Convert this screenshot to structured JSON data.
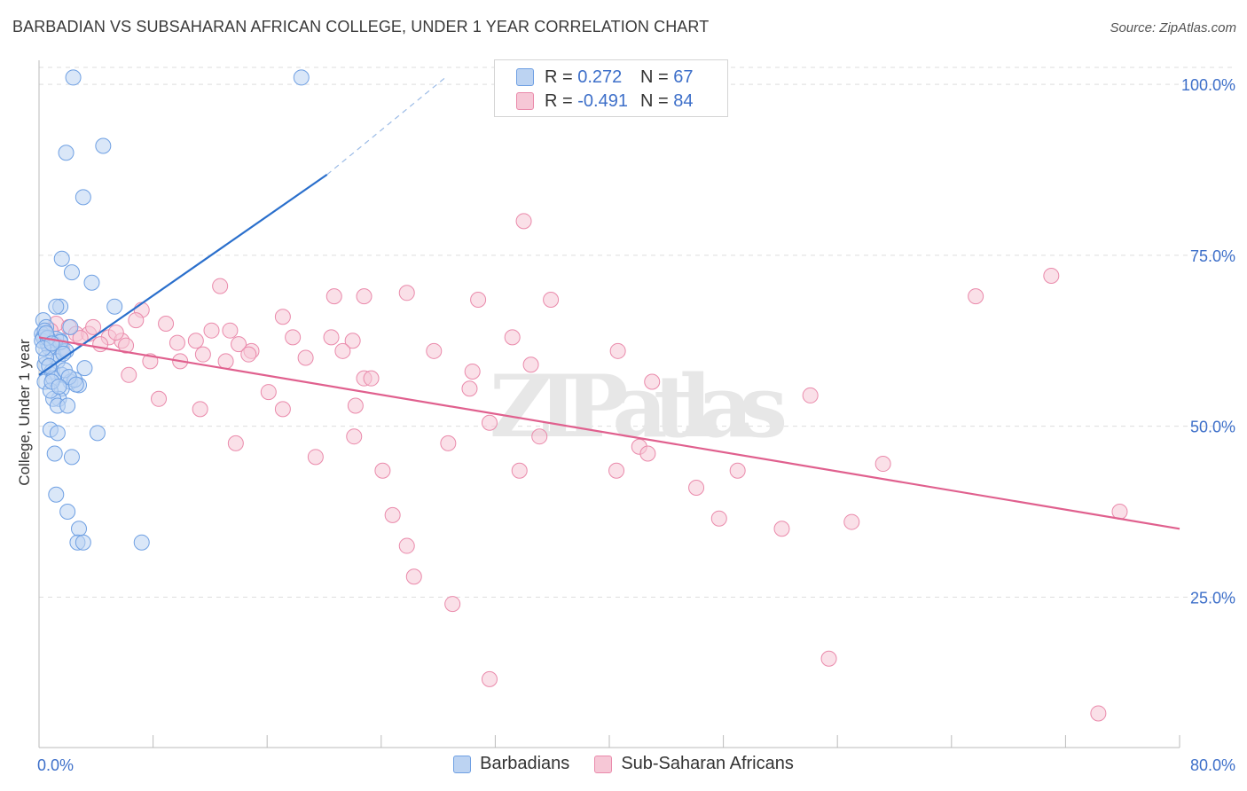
{
  "title": "BARBADIAN VS SUBSAHARAN AFRICAN COLLEGE, UNDER 1 YEAR CORRELATION CHART",
  "source": "Source: ZipAtlas.com",
  "watermark": "ZIPatlas",
  "legend_top": {
    "rows": [
      {
        "r_label": "R =",
        "r_value": "0.272",
        "n_label": "N =",
        "n_value": "67"
      },
      {
        "r_label": "R =",
        "r_value": "-0.491",
        "n_label": "N =",
        "n_value": "84"
      }
    ]
  },
  "colors": {
    "blue": "#6fa0e3",
    "blue_fill": "#bcd3f2",
    "blue_line": "#2a6fcc",
    "pink": "#ea8aab",
    "pink_fill": "#f6c7d6",
    "pink_line": "#e0608e",
    "axis_text": "#3d6fc9",
    "grid": "#dddddd"
  },
  "chart_data": {
    "type": "scatter",
    "title": "BARBADIAN VS SUBSAHARAN AFRICAN COLLEGE, UNDER 1 YEAR CORRELATION CHART",
    "xlabel": "",
    "ylabel": "College, Under 1 year",
    "xlim": [
      0,
      80
    ],
    "ylim": [
      3,
      103
    ],
    "x_tick_labels": [
      "0.0%",
      "80.0%"
    ],
    "y_ticks": [
      25,
      50,
      75,
      100
    ],
    "y_tick_labels": [
      "25.0%",
      "50.0%",
      "75.0%",
      "100.0%"
    ],
    "legend": [
      "Barbadians",
      "Sub-Saharan Africans"
    ],
    "series": [
      {
        "name": "Barbadians",
        "r": 0.272,
        "n": 67,
        "trend": {
          "x0": 0,
          "y0": 57.5,
          "x1": 20.2,
          "y1": 86.8,
          "dash_x1": 28.5,
          "dash_y1": 101
        },
        "points": [
          [
            2.4,
            101
          ],
          [
            18.4,
            101
          ],
          [
            1.9,
            90
          ],
          [
            4.5,
            91
          ],
          [
            3.1,
            83.5
          ],
          [
            1.6,
            74.5
          ],
          [
            2.3,
            72.5
          ],
          [
            3.7,
            71
          ],
          [
            1.5,
            67.5
          ],
          [
            5.3,
            67.5
          ],
          [
            1.2,
            67.5
          ],
          [
            0.3,
            65.5
          ],
          [
            0.5,
            64.5
          ],
          [
            2.2,
            64.5
          ],
          [
            0.2,
            63.5
          ],
          [
            0.6,
            63
          ],
          [
            1.5,
            62.5
          ],
          [
            1.1,
            62
          ],
          [
            0.6,
            62
          ],
          [
            1.6,
            61
          ],
          [
            1.0,
            60.5
          ],
          [
            1.3,
            59.5
          ],
          [
            0.4,
            59
          ],
          [
            3.2,
            58.5
          ],
          [
            0.9,
            58
          ],
          [
            1.6,
            57.5
          ],
          [
            0.4,
            56.5
          ],
          [
            2.2,
            56.5
          ],
          [
            2.8,
            56
          ],
          [
            1.6,
            55.5
          ],
          [
            1.4,
            54
          ],
          [
            1.0,
            54
          ],
          [
            1.3,
            53
          ],
          [
            2.0,
            53
          ],
          [
            0.8,
            49.5
          ],
          [
            1.3,
            49
          ],
          [
            4.1,
            49
          ],
          [
            1.1,
            46
          ],
          [
            2.3,
            45.5
          ],
          [
            1.2,
            40
          ],
          [
            2.0,
            37.5
          ],
          [
            2.8,
            35
          ],
          [
            2.7,
            33
          ],
          [
            3.1,
            33
          ],
          [
            7.2,
            33
          ],
          [
            0.3,
            63
          ],
          [
            0.7,
            61.5
          ],
          [
            1.0,
            57
          ],
          [
            1.9,
            61
          ],
          [
            0.2,
            62.5
          ],
          [
            0.5,
            60
          ],
          [
            2.5,
            56.8
          ],
          [
            0.8,
            55.2
          ],
          [
            1.8,
            58.2
          ],
          [
            0.4,
            64
          ],
          [
            1.2,
            62.8
          ],
          [
            0.9,
            56.5
          ],
          [
            1.5,
            62.3
          ],
          [
            0.6,
            62.9
          ],
          [
            2.1,
            57.2
          ],
          [
            0.3,
            61.4
          ],
          [
            0.7,
            58.8
          ],
          [
            1.7,
            60.6
          ],
          [
            0.5,
            63.6
          ],
          [
            1.4,
            55.8
          ],
          [
            0.9,
            62.1
          ],
          [
            2.6,
            56.1
          ]
        ]
      },
      {
        "name": "Sub-Saharan Africans",
        "r": -0.491,
        "n": 84,
        "trend": {
          "x0": 0,
          "y0": 63,
          "x1": 80,
          "y1": 35
        },
        "points": [
          [
            34.0,
            80
          ],
          [
            71.0,
            72
          ],
          [
            12.7,
            70.5
          ],
          [
            20.7,
            69
          ],
          [
            25.8,
            69.5
          ],
          [
            22.8,
            69
          ],
          [
            30.8,
            68.5
          ],
          [
            35.9,
            68.5
          ],
          [
            65.7,
            69
          ],
          [
            7.2,
            67
          ],
          [
            17.1,
            66
          ],
          [
            6.8,
            65.5
          ],
          [
            1.2,
            65
          ],
          [
            8.9,
            65
          ],
          [
            2.1,
            64.5
          ],
          [
            12.1,
            64
          ],
          [
            13.4,
            64
          ],
          [
            0.8,
            64
          ],
          [
            2.6,
            63.5
          ],
          [
            3.5,
            63.5
          ],
          [
            4.9,
            63
          ],
          [
            5.8,
            62.5
          ],
          [
            17.8,
            63
          ],
          [
            20.5,
            63
          ],
          [
            33.2,
            63
          ],
          [
            0.6,
            63
          ],
          [
            11.0,
            62.5
          ],
          [
            14.0,
            62
          ],
          [
            22.0,
            62.5
          ],
          [
            4.3,
            62
          ],
          [
            14.9,
            61
          ],
          [
            21.3,
            61
          ],
          [
            27.7,
            61
          ],
          [
            40.6,
            61
          ],
          [
            11.5,
            60.5
          ],
          [
            14.7,
            60.5
          ],
          [
            18.7,
            60
          ],
          [
            7.8,
            59.5
          ],
          [
            9.9,
            59.5
          ],
          [
            13.1,
            59.5
          ],
          [
            34.5,
            59
          ],
          [
            6.3,
            57.5
          ],
          [
            22.8,
            57
          ],
          [
            23.3,
            57
          ],
          [
            30.4,
            58
          ],
          [
            43.0,
            56.5
          ],
          [
            16.1,
            55
          ],
          [
            30.2,
            55.5
          ],
          [
            22.2,
            53
          ],
          [
            8.4,
            54
          ],
          [
            11.3,
            52.5
          ],
          [
            17.1,
            52.5
          ],
          [
            54.1,
            54.5
          ],
          [
            31.6,
            50.5
          ],
          [
            22.1,
            48.5
          ],
          [
            35.1,
            48.5
          ],
          [
            42.1,
            47
          ],
          [
            28.7,
            47.5
          ],
          [
            13.8,
            47.5
          ],
          [
            19.4,
            45.5
          ],
          [
            42.7,
            46
          ],
          [
            59.2,
            44.5
          ],
          [
            24.1,
            43.5
          ],
          [
            33.7,
            43.5
          ],
          [
            40.5,
            43.5
          ],
          [
            49.0,
            43.5
          ],
          [
            46.1,
            41
          ],
          [
            24.8,
            37
          ],
          [
            47.7,
            36.5
          ],
          [
            57.0,
            36
          ],
          [
            52.1,
            35
          ],
          [
            75.8,
            37.5
          ],
          [
            25.8,
            32.5
          ],
          [
            26.3,
            28
          ],
          [
            29.0,
            24
          ],
          [
            31.6,
            13
          ],
          [
            55.4,
            16
          ],
          [
            74.3,
            8
          ],
          [
            3.8,
            64.5
          ],
          [
            1.6,
            61.5
          ],
          [
            5.4,
            63.7
          ],
          [
            9.7,
            62.2
          ],
          [
            2.9,
            62.9
          ],
          [
            6.1,
            61.8
          ]
        ]
      }
    ]
  }
}
